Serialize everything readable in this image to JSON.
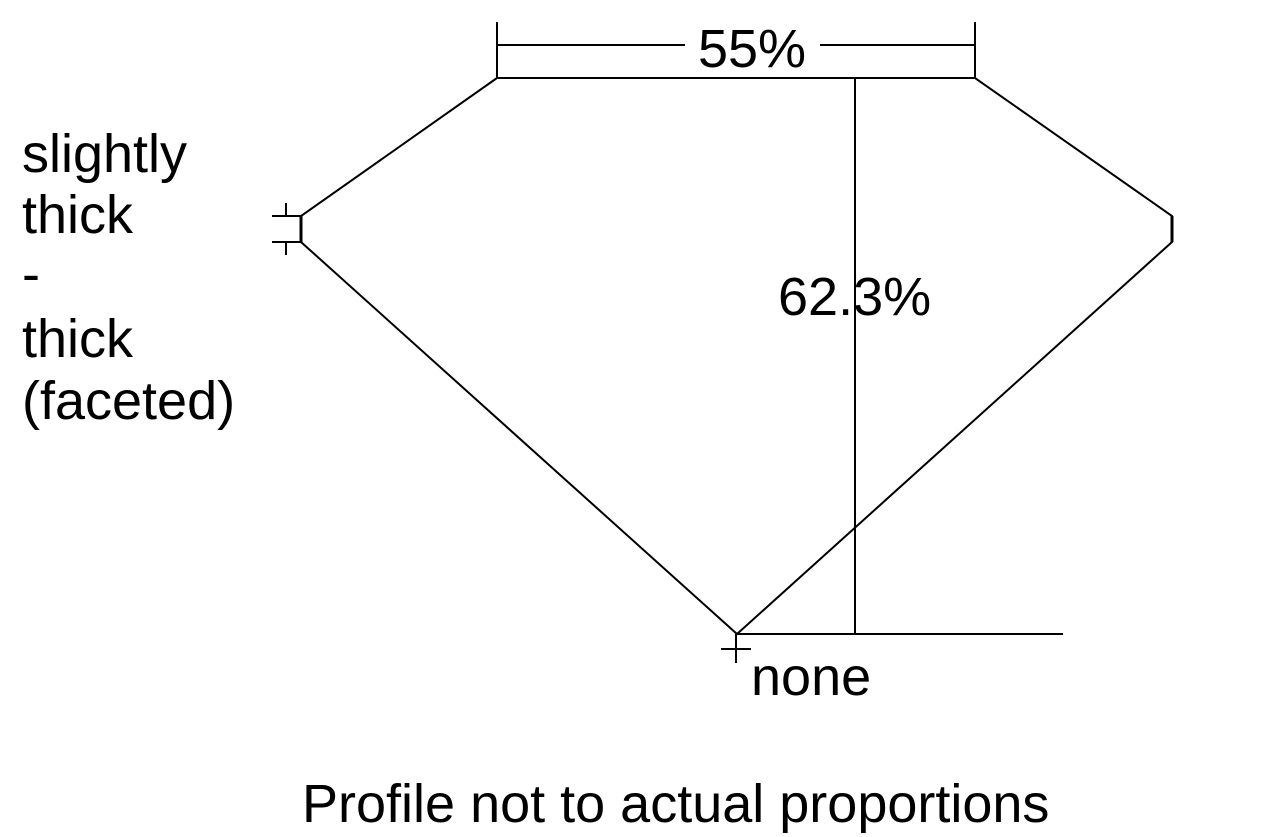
{
  "table_percent": "55%",
  "depth_percent": "62.3%",
  "culet": "none",
  "girdle_label": [
    "slightly",
    "thick",
    "-",
    "thick",
    "(faceted)"
  ],
  "footnote": "Profile not to actual proportions",
  "colors": {
    "line": "#000000",
    "background": "#ffffff"
  }
}
